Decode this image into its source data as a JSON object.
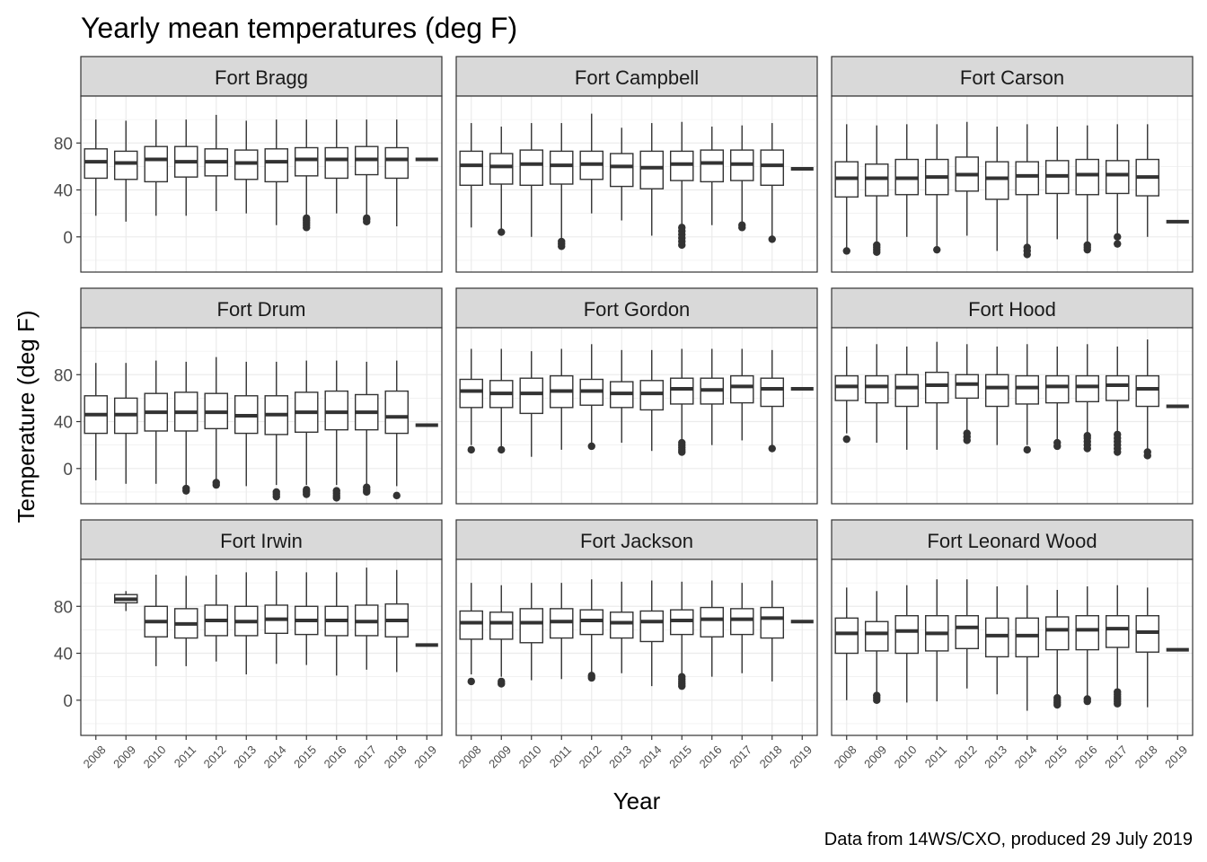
{
  "chart_data": {
    "type": "boxplot",
    "title": "Yearly mean temperatures (deg F)",
    "xlabel": "Year",
    "ylabel": "Temperature (deg F)",
    "caption": "Data from 14WS/CXO, produced 29 July 2019",
    "years": [
      "2008",
      "2009",
      "2010",
      "2011",
      "2012",
      "2013",
      "2014",
      "2015",
      "2016",
      "2017",
      "2018",
      "2019"
    ],
    "y_ticks": [
      0,
      40,
      80
    ],
    "ylim": [
      -30,
      120
    ],
    "grid": true,
    "colors": {
      "box_stroke": "#333333",
      "strip_fill": "#d9d9d9",
      "panel_border": "#333333",
      "grid": "#ebebeb"
    },
    "panels": [
      {
        "name": "Fort Bragg",
        "boxes": [
          {
            "lo": 18,
            "q1": 50,
            "med": 64,
            "q3": 75,
            "hi": 100
          },
          {
            "lo": 13,
            "q1": 49,
            "med": 63,
            "q3": 73,
            "hi": 99
          },
          {
            "lo": 18,
            "q1": 47,
            "med": 66,
            "q3": 77,
            "hi": 100
          },
          {
            "lo": 18,
            "q1": 51,
            "med": 64,
            "q3": 77,
            "hi": 100
          },
          {
            "lo": 22,
            "q1": 52,
            "med": 64,
            "q3": 75,
            "hi": 104
          },
          {
            "lo": 20,
            "q1": 49,
            "med": 63,
            "q3": 74,
            "hi": 99
          },
          {
            "lo": 10,
            "q1": 47,
            "med": 64,
            "q3": 75,
            "hi": 100
          },
          {
            "lo": 18,
            "q1": 52,
            "med": 66,
            "q3": 76,
            "hi": 100
          },
          {
            "lo": 20,
            "q1": 50,
            "med": 66,
            "q3": 76,
            "hi": 100
          },
          {
            "lo": 18,
            "q1": 53,
            "med": 66,
            "q3": 77,
            "hi": 100
          },
          {
            "lo": 9,
            "q1": 50,
            "med": 66,
            "q3": 76,
            "hi": 100
          },
          {
            "lo": 66,
            "q1": 66,
            "med": 66,
            "q3": 66,
            "hi": 66
          }
        ],
        "outliers": [
          [],
          [],
          [],
          [],
          [],
          [],
          [],
          [
            8,
            10,
            12,
            14,
            16
          ],
          [],
          [
            13,
            15,
            16
          ],
          [],
          []
        ]
      },
      {
        "name": "Fort Campbell",
        "boxes": [
          {
            "lo": 8,
            "q1": 44,
            "med": 61,
            "q3": 73,
            "hi": 97
          },
          {
            "lo": 5,
            "q1": 45,
            "med": 60,
            "q3": 71,
            "hi": 94
          },
          {
            "lo": 0,
            "q1": 44,
            "med": 62,
            "q3": 74,
            "hi": 97
          },
          {
            "lo": -3,
            "q1": 45,
            "med": 61,
            "q3": 73,
            "hi": 97
          },
          {
            "lo": 20,
            "q1": 49,
            "med": 62,
            "q3": 73,
            "hi": 105
          },
          {
            "lo": 14,
            "q1": 43,
            "med": 60,
            "q3": 71,
            "hi": 93
          },
          {
            "lo": 1,
            "q1": 41,
            "med": 59,
            "q3": 73,
            "hi": 97
          },
          {
            "lo": 11,
            "q1": 48,
            "med": 62,
            "q3": 73,
            "hi": 98
          },
          {
            "lo": 10,
            "q1": 47,
            "med": 63,
            "q3": 74,
            "hi": 94
          },
          {
            "lo": 12,
            "q1": 48,
            "med": 62,
            "q3": 74,
            "hi": 95
          },
          {
            "lo": 0,
            "q1": 44,
            "med": 61,
            "q3": 74,
            "hi": 97
          },
          {
            "lo": 58,
            "q1": 58,
            "med": 58,
            "q3": 58,
            "hi": 58
          }
        ],
        "outliers": [
          [],
          [
            4
          ],
          [],
          [
            -8,
            -6,
            -4
          ],
          [],
          [],
          [],
          [
            -7,
            -4,
            -1,
            2,
            5,
            8
          ],
          [],
          [
            8,
            10
          ],
          [
            -2
          ],
          []
        ]
      },
      {
        "name": "Fort Carson",
        "boxes": [
          {
            "lo": -10,
            "q1": 34,
            "med": 50,
            "q3": 64,
            "hi": 96
          },
          {
            "lo": -8,
            "q1": 35,
            "med": 50,
            "q3": 62,
            "hi": 95
          },
          {
            "lo": 0,
            "q1": 36,
            "med": 50,
            "q3": 66,
            "hi": 96
          },
          {
            "lo": -10,
            "q1": 36,
            "med": 51,
            "q3": 66,
            "hi": 96
          },
          {
            "lo": 1,
            "q1": 39,
            "med": 53,
            "q3": 68,
            "hi": 98
          },
          {
            "lo": -12,
            "q1": 32,
            "med": 50,
            "q3": 64,
            "hi": 94
          },
          {
            "lo": -8,
            "q1": 36,
            "med": 52,
            "q3": 64,
            "hi": 96
          },
          {
            "lo": -2,
            "q1": 37,
            "med": 52,
            "q3": 65,
            "hi": 94
          },
          {
            "lo": -4,
            "q1": 36,
            "med": 53,
            "q3": 66,
            "hi": 95
          },
          {
            "lo": 2,
            "q1": 37,
            "med": 53,
            "q3": 65,
            "hi": 96
          },
          {
            "lo": 0,
            "q1": 35,
            "med": 51,
            "q3": 66,
            "hi": 96
          },
          {
            "lo": 13,
            "q1": 13,
            "med": 13,
            "q3": 13,
            "hi": 13
          }
        ],
        "outliers": [
          [
            -12
          ],
          [
            -13,
            -11,
            -9,
            -7
          ],
          [],
          [
            -11
          ],
          [],
          [],
          [
            -15,
            -12,
            -9
          ],
          [],
          [
            -11,
            -9,
            -7
          ],
          [
            -6,
            0
          ],
          [],
          []
        ]
      },
      {
        "name": "Fort Drum",
        "boxes": [
          {
            "lo": -10,
            "q1": 30,
            "med": 46,
            "q3": 62,
            "hi": 90
          },
          {
            "lo": -13,
            "q1": 30,
            "med": 46,
            "q3": 60,
            "hi": 90
          },
          {
            "lo": -13,
            "q1": 32,
            "med": 48,
            "q3": 64,
            "hi": 92
          },
          {
            "lo": -14,
            "q1": 32,
            "med": 48,
            "q3": 65,
            "hi": 91
          },
          {
            "lo": -9,
            "q1": 34,
            "med": 48,
            "q3": 64,
            "hi": 95
          },
          {
            "lo": -15,
            "q1": 30,
            "med": 45,
            "q3": 62,
            "hi": 91
          },
          {
            "lo": -14,
            "q1": 29,
            "med": 46,
            "q3": 62,
            "hi": 91
          },
          {
            "lo": -14,
            "q1": 31,
            "med": 48,
            "q3": 65,
            "hi": 92
          },
          {
            "lo": -14,
            "q1": 33,
            "med": 48,
            "q3": 66,
            "hi": 92
          },
          {
            "lo": -14,
            "q1": 33,
            "med": 48,
            "q3": 63,
            "hi": 91
          },
          {
            "lo": -15,
            "q1": 30,
            "med": 44,
            "q3": 66,
            "hi": 92
          },
          {
            "lo": 37,
            "q1": 37,
            "med": 37,
            "q3": 37,
            "hi": 37
          }
        ],
        "outliers": [
          [],
          [],
          [],
          [
            -19,
            -17
          ],
          [
            -14,
            -12
          ],
          [],
          [
            -24,
            -22,
            -20
          ],
          [
            -22,
            -20,
            -18
          ],
          [
            -25,
            -23,
            -21,
            -19
          ],
          [
            -20,
            -18,
            -16
          ],
          [
            -23
          ],
          []
        ]
      },
      {
        "name": "Fort Gordon",
        "boxes": [
          {
            "lo": 20,
            "q1": 52,
            "med": 66,
            "q3": 76,
            "hi": 102
          },
          {
            "lo": 18,
            "q1": 52,
            "med": 64,
            "q3": 75,
            "hi": 102
          },
          {
            "lo": 10,
            "q1": 47,
            "med": 64,
            "q3": 77,
            "hi": 100
          },
          {
            "lo": 16,
            "q1": 52,
            "med": 66,
            "q3": 79,
            "hi": 102
          },
          {
            "lo": 22,
            "q1": 54,
            "med": 66,
            "q3": 76,
            "hi": 106
          },
          {
            "lo": 22,
            "q1": 52,
            "med": 64,
            "q3": 74,
            "hi": 101
          },
          {
            "lo": 15,
            "q1": 50,
            "med": 64,
            "q3": 75,
            "hi": 101
          },
          {
            "lo": 24,
            "q1": 55,
            "med": 68,
            "q3": 77,
            "hi": 102
          },
          {
            "lo": 20,
            "q1": 55,
            "med": 67,
            "q3": 77,
            "hi": 102
          },
          {
            "lo": 24,
            "q1": 56,
            "med": 70,
            "q3": 79,
            "hi": 102
          },
          {
            "lo": 20,
            "q1": 53,
            "med": 68,
            "q3": 77,
            "hi": 101
          },
          {
            "lo": 68,
            "q1": 68,
            "med": 68,
            "q3": 68,
            "hi": 68
          }
        ],
        "outliers": [
          [
            16
          ],
          [
            16
          ],
          [],
          [],
          [
            19
          ],
          [],
          [],
          [
            14,
            16,
            18,
            20,
            22
          ],
          [],
          [],
          [
            17
          ],
          []
        ]
      },
      {
        "name": "Fort Hood",
        "boxes": [
          {
            "lo": 30,
            "q1": 58,
            "med": 70,
            "q3": 79,
            "hi": 104
          },
          {
            "lo": 22,
            "q1": 56,
            "med": 70,
            "q3": 79,
            "hi": 106
          },
          {
            "lo": 16,
            "q1": 53,
            "med": 69,
            "q3": 80,
            "hi": 104
          },
          {
            "lo": 16,
            "q1": 56,
            "med": 71,
            "q3": 82,
            "hi": 108
          },
          {
            "lo": 30,
            "q1": 60,
            "med": 72,
            "q3": 80,
            "hi": 106
          },
          {
            "lo": 20,
            "q1": 53,
            "med": 69,
            "q3": 80,
            "hi": 104
          },
          {
            "lo": 20,
            "q1": 55,
            "med": 69,
            "q3": 79,
            "hi": 106
          },
          {
            "lo": 22,
            "q1": 56,
            "med": 70,
            "q3": 79,
            "hi": 104
          },
          {
            "lo": 28,
            "q1": 57,
            "med": 70,
            "q3": 79,
            "hi": 106
          },
          {
            "lo": 30,
            "q1": 58,
            "med": 71,
            "q3": 79,
            "hi": 104
          },
          {
            "lo": 16,
            "q1": 53,
            "med": 68,
            "q3": 79,
            "hi": 110
          },
          {
            "lo": 53,
            "q1": 53,
            "med": 53,
            "q3": 53,
            "hi": 53
          }
        ],
        "outliers": [
          [
            25
          ],
          [],
          [],
          [],
          [
            24,
            27,
            30
          ],
          [],
          [
            16
          ],
          [
            19,
            22
          ],
          [
            17,
            20,
            23,
            26,
            28
          ],
          [
            14,
            17,
            20,
            23,
            26,
            29
          ],
          [
            11,
            14
          ],
          []
        ]
      },
      {
        "name": "Fort Irwin",
        "boxes": [
          {
            "lo": null,
            "q1": null,
            "med": null,
            "q3": null,
            "hi": null
          },
          {
            "lo": 76,
            "q1": 83,
            "med": 86,
            "q3": 90,
            "hi": 93
          },
          {
            "lo": 29,
            "q1": 54,
            "med": 67,
            "q3": 80,
            "hi": 107
          },
          {
            "lo": 29,
            "q1": 53,
            "med": 65,
            "q3": 78,
            "hi": 106
          },
          {
            "lo": 33,
            "q1": 55,
            "med": 68,
            "q3": 81,
            "hi": 107
          },
          {
            "lo": 22,
            "q1": 55,
            "med": 67,
            "q3": 80,
            "hi": 109
          },
          {
            "lo": 31,
            "q1": 57,
            "med": 69,
            "q3": 81,
            "hi": 110
          },
          {
            "lo": 30,
            "q1": 56,
            "med": 68,
            "q3": 80,
            "hi": 109
          },
          {
            "lo": 21,
            "q1": 55,
            "med": 68,
            "q3": 80,
            "hi": 109
          },
          {
            "lo": 26,
            "q1": 55,
            "med": 67,
            "q3": 81,
            "hi": 113
          },
          {
            "lo": 24,
            "q1": 54,
            "med": 68,
            "q3": 82,
            "hi": 111
          },
          {
            "lo": 47,
            "q1": 47,
            "med": 47,
            "q3": 47,
            "hi": 47
          }
        ],
        "outliers": [
          [],
          [],
          [],
          [],
          [],
          [],
          [],
          [],
          [],
          [],
          [],
          []
        ]
      },
      {
        "name": "Fort Jackson",
        "boxes": [
          {
            "lo": 22,
            "q1": 52,
            "med": 66,
            "q3": 76,
            "hi": 100
          },
          {
            "lo": 20,
            "q1": 52,
            "med": 66,
            "q3": 75,
            "hi": 98
          },
          {
            "lo": 17,
            "q1": 49,
            "med": 66,
            "q3": 78,
            "hi": 100
          },
          {
            "lo": 18,
            "q1": 53,
            "med": 67,
            "q3": 78,
            "hi": 100
          },
          {
            "lo": 24,
            "q1": 56,
            "med": 68,
            "q3": 77,
            "hi": 103
          },
          {
            "lo": 23,
            "q1": 53,
            "med": 66,
            "q3": 75,
            "hi": 101
          },
          {
            "lo": 12,
            "q1": 50,
            "med": 67,
            "q3": 76,
            "hi": 102
          },
          {
            "lo": 23,
            "q1": 56,
            "med": 68,
            "q3": 77,
            "hi": 101
          },
          {
            "lo": 20,
            "q1": 54,
            "med": 69,
            "q3": 79,
            "hi": 102
          },
          {
            "lo": 23,
            "q1": 56,
            "med": 69,
            "q3": 78,
            "hi": 100
          },
          {
            "lo": 16,
            "q1": 53,
            "med": 70,
            "q3": 79,
            "hi": 102
          },
          {
            "lo": 67,
            "q1": 67,
            "med": 67,
            "q3": 67,
            "hi": 67
          }
        ],
        "outliers": [
          [
            16
          ],
          [
            14,
            16
          ],
          [],
          [],
          [
            19,
            21
          ],
          [],
          [],
          [
            12,
            14,
            16,
            18,
            20
          ],
          [],
          [],
          [],
          []
        ]
      },
      {
        "name": "Fort Leonard Wood",
        "boxes": [
          {
            "lo": 0,
            "q1": 40,
            "med": 57,
            "q3": 70,
            "hi": 96
          },
          {
            "lo": 6,
            "q1": 42,
            "med": 57,
            "q3": 67,
            "hi": 93
          },
          {
            "lo": -2,
            "q1": 40,
            "med": 59,
            "q3": 72,
            "hi": 98
          },
          {
            "lo": -1,
            "q1": 42,
            "med": 57,
            "q3": 72,
            "hi": 103
          },
          {
            "lo": 10,
            "q1": 44,
            "med": 62,
            "q3": 72,
            "hi": 103
          },
          {
            "lo": 5,
            "q1": 37,
            "med": 55,
            "q3": 70,
            "hi": 97
          },
          {
            "lo": -9,
            "q1": 37,
            "med": 55,
            "q3": 70,
            "hi": 98
          },
          {
            "lo": 3,
            "q1": 43,
            "med": 60,
            "q3": 71,
            "hi": 94
          },
          {
            "lo": 2,
            "q1": 43,
            "med": 60,
            "q3": 72,
            "hi": 97
          },
          {
            "lo": 8,
            "q1": 45,
            "med": 61,
            "q3": 72,
            "hi": 98
          },
          {
            "lo": -6,
            "q1": 41,
            "med": 58,
            "q3": 72,
            "hi": 96
          },
          {
            "lo": 43,
            "q1": 43,
            "med": 43,
            "q3": 43,
            "hi": 43
          }
        ],
        "outliers": [
          [],
          [
            0,
            2,
            4
          ],
          [],
          [],
          [],
          [],
          [],
          [
            -4,
            -2,
            0,
            2
          ],
          [
            -1,
            1
          ],
          [
            -3,
            -1,
            1,
            3,
            5,
            7
          ],
          [],
          []
        ]
      }
    ]
  }
}
